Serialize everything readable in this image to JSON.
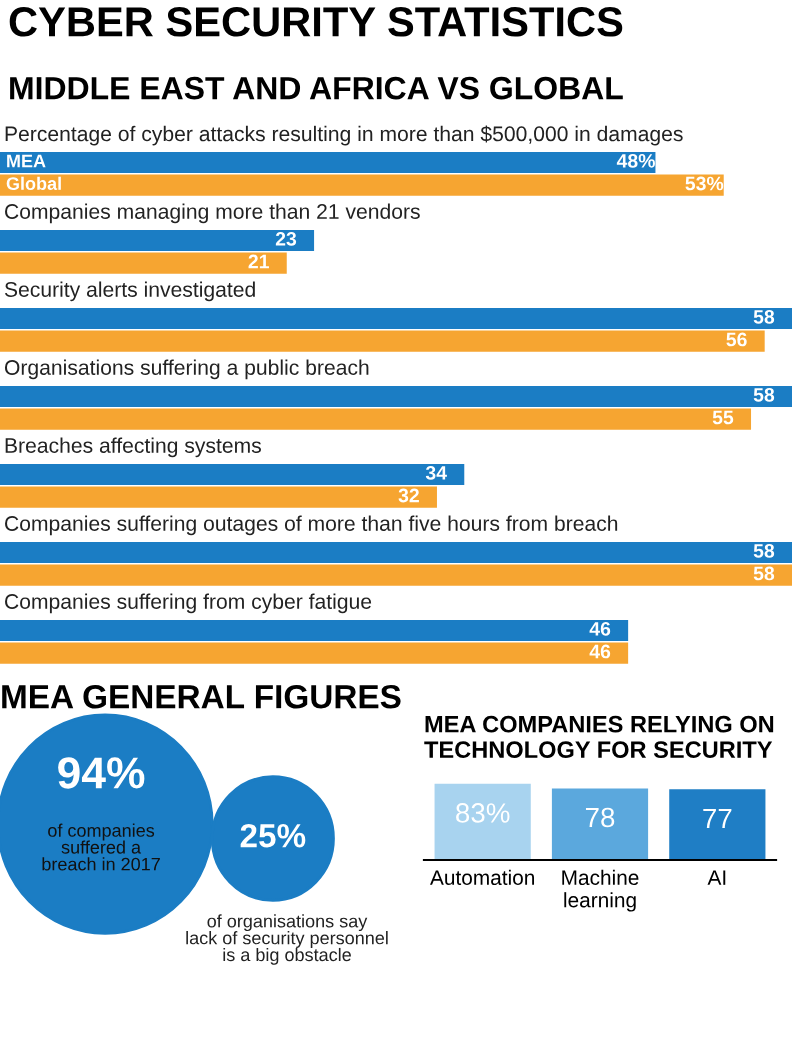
{
  "chart_data": [
    {
      "type": "bar",
      "orientation": "horizontal",
      "title": "CYBER SECURITY STATISTICS",
      "subtitle": "MIDDLE EAST AND AFRICA VS GLOBAL",
      "categories": [
        "Percentage of cyber attacks resulting in more than $500,000 in damages",
        "Companies managing more than 21 vendors",
        "Security alerts investigated",
        "Organisations suffering a public breach",
        "Breaches affecting systems",
        "Companies suffering outages of more than five hours from breach",
        "Companies suffering from cyber fatigue"
      ],
      "series": [
        {
          "name": "MEA",
          "color": "#1b7dc4",
          "values": [
            48,
            23,
            58,
            58,
            34,
            58,
            46
          ],
          "value_labels": [
            "48%",
            "23",
            "58",
            "58",
            "34",
            "58",
            "46"
          ]
        },
        {
          "name": "Global",
          "color": "#f6a531",
          "values": [
            53,
            21,
            56,
            55,
            32,
            58,
            46
          ],
          "value_labels": [
            "53%",
            "21",
            "56",
            "55",
            "32",
            "58",
            "46"
          ]
        }
      ],
      "legend": false
    },
    {
      "type": "other",
      "title": "MEA GENERAL FIGURES",
      "annotations": [
        "94%",
        "of companies\nsuffered a\nbreach in 2017",
        "25%",
        "of organisations say\nlack of security personnel\nis a big obstacle"
      ]
    },
    {
      "type": "bar",
      "title": "MEA COMPANIES RELYING ON\nTECHNOLOGY FOR SECURITY",
      "categories": [
        "Automation",
        "Machine\nlearning",
        "AI"
      ],
      "values": [
        83,
        78,
        77
      ],
      "colors": [
        "#a8d3ef",
        "#5ba8dd",
        "#1f7ec5"
      ],
      "value_labels": [
        "83%",
        "78",
        "77"
      ]
    }
  ]
}
